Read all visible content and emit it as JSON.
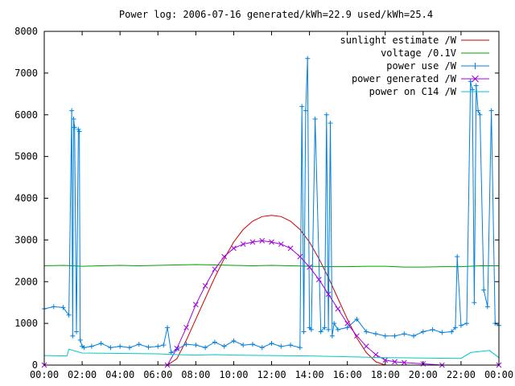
{
  "chart_data": {
    "type": "line",
    "title": "Power log: 2006-07-16 generated/kWh=22.9 used/kWh=25.4",
    "xlabel": "",
    "ylabel": "",
    "xlim": [
      0,
      24
    ],
    "ylim": [
      0,
      8000
    ],
    "x_ticks": [
      {
        "value": 0,
        "label": "00:00"
      },
      {
        "value": 2,
        "label": "02:00"
      },
      {
        "value": 4,
        "label": "04:00"
      },
      {
        "value": 6,
        "label": "06:00"
      },
      {
        "value": 8,
        "label": "08:00"
      },
      {
        "value": 10,
        "label": "10:00"
      },
      {
        "value": 12,
        "label": "12:00"
      },
      {
        "value": 14,
        "label": "14:00"
      },
      {
        "value": 16,
        "label": "16:00"
      },
      {
        "value": 18,
        "label": "18:00"
      },
      {
        "value": 20,
        "label": "20:00"
      },
      {
        "value": 22,
        "label": "22:00"
      },
      {
        "value": 24,
        "label": "00:00"
      }
    ],
    "y_ticks": [
      {
        "value": 0,
        "label": "0"
      },
      {
        "value": 1000,
        "label": "1000"
      },
      {
        "value": 2000,
        "label": "2000"
      },
      {
        "value": 3000,
        "label": "3000"
      },
      {
        "value": 4000,
        "label": "4000"
      },
      {
        "value": 5000,
        "label": "5000"
      },
      {
        "value": 6000,
        "label": "6000"
      },
      {
        "value": 7000,
        "label": "7000"
      },
      {
        "value": 8000,
        "label": "8000"
      }
    ],
    "grid": false,
    "legend_position": "top-right",
    "series": [
      {
        "name": "sunlight estimate /W",
        "color": "#cc0000",
        "marker": "none",
        "x": [
          0,
          6.5,
          7,
          7.5,
          8,
          8.5,
          9,
          9.5,
          10,
          10.5,
          11,
          11.5,
          12,
          12.5,
          13,
          13.5,
          14,
          14.5,
          15,
          15.5,
          16,
          16.5,
          17,
          17.5,
          18,
          24
        ],
        "y": [
          0,
          0,
          150,
          600,
          1100,
          1600,
          2100,
          2550,
          2950,
          3250,
          3450,
          3560,
          3590,
          3560,
          3450,
          3250,
          2950,
          2550,
          2100,
          1600,
          1100,
          650,
          300,
          80,
          0,
          0
        ]
      },
      {
        "name": "voltage /0.1V",
        "color": "#00a000",
        "marker": "none",
        "x": [
          0,
          1,
          2,
          3,
          4,
          5,
          6,
          7,
          8,
          9,
          10,
          11,
          12,
          13,
          14,
          15,
          16,
          17,
          18,
          19,
          20,
          21,
          22,
          23,
          24
        ],
        "y": [
          2380,
          2390,
          2370,
          2380,
          2390,
          2380,
          2390,
          2400,
          2410,
          2400,
          2390,
          2380,
          2390,
          2380,
          2370,
          2360,
          2360,
          2370,
          2370,
          2350,
          2350,
          2360,
          2360,
          2380,
          2380
        ]
      },
      {
        "name": "power use /W",
        "color": "#0080e0",
        "marker": "plus",
        "x": [
          0,
          0.5,
          1,
          1.3,
          1.45,
          1.5,
          1.55,
          1.6,
          1.7,
          1.8,
          1.85,
          1.9,
          2.0,
          2.1,
          2.5,
          3,
          3.5,
          4,
          4.5,
          5,
          5.5,
          6,
          6.3,
          6.5,
          6.7,
          7,
          7.5,
          8,
          8.5,
          9,
          9.5,
          10,
          10.5,
          11,
          11.5,
          12,
          12.5,
          13,
          13.5,
          13.6,
          13.7,
          13.8,
          13.9,
          14.0,
          14.1,
          14.3,
          14.6,
          14.8,
          14.9,
          15.0,
          15.1,
          15.2,
          15.3,
          15.5,
          16,
          16.5,
          17,
          17.5,
          18,
          18.5,
          19,
          19.5,
          20,
          20.5,
          21,
          21.5,
          21.7,
          21.8,
          22,
          22.3,
          22.5,
          22.6,
          22.7,
          22.8,
          22.9,
          23.0,
          23.2,
          23.4,
          23.6,
          23.8,
          24
        ],
        "y": [
          1350,
          1400,
          1380,
          1200,
          6100,
          700,
          5900,
          5700,
          800,
          5650,
          5600,
          600,
          450,
          420,
          450,
          520,
          420,
          450,
          420,
          500,
          430,
          450,
          480,
          900,
          300,
          380,
          500,
          480,
          420,
          550,
          450,
          580,
          480,
          500,
          420,
          520,
          450,
          480,
          420,
          6200,
          800,
          6100,
          7350,
          900,
          850,
          5900,
          800,
          900,
          6000,
          850,
          5800,
          700,
          1000,
          850,
          900,
          1100,
          800,
          750,
          700,
          700,
          750,
          700,
          800,
          850,
          780,
          800,
          900,
          2600,
          950,
          1000,
          6800,
          6600,
          1500,
          6700,
          6100,
          6000,
          1800,
          1400,
          6100,
          1000,
          950
        ]
      },
      {
        "name": "power generated /W",
        "color": "#a000e0",
        "marker": "cross",
        "x": [
          0,
          6.5,
          7,
          7.5,
          8,
          8.5,
          9,
          9.5,
          10,
          10.5,
          11,
          11.5,
          12,
          12.5,
          13,
          13.5,
          14,
          14.5,
          15,
          15.5,
          16,
          16.5,
          17,
          17.5,
          18,
          18.5,
          19,
          20,
          21,
          24
        ],
        "y": [
          0,
          0,
          400,
          900,
          1450,
          1900,
          2300,
          2600,
          2800,
          2900,
          2950,
          2980,
          2950,
          2900,
          2800,
          2600,
          2350,
          2050,
          1700,
          1350,
          1000,
          700,
          450,
          250,
          120,
          80,
          60,
          30,
          0,
          0
        ]
      },
      {
        "name": "power on C14 /W",
        "color": "#00c8c8",
        "marker": "none",
        "x": [
          0,
          1.2,
          1.3,
          2,
          4,
          6,
          7,
          8,
          9,
          10,
          12,
          14,
          16,
          18,
          20,
          22,
          22.5,
          23.5,
          24
        ],
        "y": [
          230,
          220,
          380,
          290,
          280,
          270,
          250,
          240,
          250,
          240,
          230,
          220,
          200,
          180,
          170,
          160,
          300,
          350,
          180
        ]
      }
    ]
  }
}
